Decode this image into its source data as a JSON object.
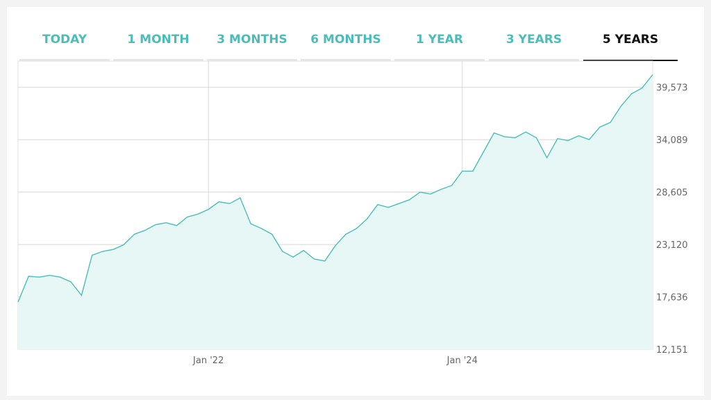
{
  "tabs": [
    {
      "label": "TODAY",
      "active": false
    },
    {
      "label": "1 MONTH",
      "active": false
    },
    {
      "label": "3 MONTHS",
      "active": false
    },
    {
      "label": "6 MONTHS",
      "active": false
    },
    {
      "label": "1 YEAR",
      "active": false
    },
    {
      "label": "3 YEARS",
      "active": false
    },
    {
      "label": "5 YEARS",
      "active": true
    }
  ],
  "colors": {
    "line": "#4bbdb8",
    "fill": "#e6f7f6",
    "grid": "#d8d8d8",
    "tab_accent": "#4bbdb8",
    "active_tab": "#111111"
  },
  "chart_data": {
    "type": "area",
    "title": "",
    "xlabel": "",
    "ylabel": "",
    "grid": true,
    "ylim": [
      12151,
      42315
    ],
    "xlim": [
      "2020-07",
      "2025-07"
    ],
    "yticks": [
      "12,151",
      "17,636",
      "23,120",
      "28,605",
      "34,089",
      "39,573"
    ],
    "xticks": [
      {
        "label": "Jan '22",
        "x": "2022-01"
      },
      {
        "label": "Jan '24",
        "x": "2024-01"
      }
    ],
    "series": [
      {
        "x": [
          "2020-07",
          "2020-08",
          "2020-09",
          "2020-10",
          "2020-11",
          "2020-12",
          "2021-01",
          "2021-02",
          "2021-03",
          "2021-04",
          "2021-05",
          "2021-06",
          "2021-07",
          "2021-08",
          "2021-09",
          "2021-10",
          "2021-11",
          "2021-12",
          "2022-01",
          "2022-02",
          "2022-03",
          "2022-04",
          "2022-05",
          "2022-06",
          "2022-07",
          "2022-08",
          "2022-09",
          "2022-10",
          "2022-11",
          "2022-12",
          "2023-01",
          "2023-02",
          "2023-03",
          "2023-04",
          "2023-05",
          "2023-06",
          "2023-07",
          "2023-08",
          "2023-09",
          "2023-10",
          "2023-11",
          "2023-12",
          "2024-01",
          "2024-02",
          "2024-03",
          "2024-04",
          "2024-05",
          "2024-06",
          "2024-07",
          "2024-08",
          "2024-09",
          "2024-10",
          "2024-11",
          "2024-12",
          "2025-01",
          "2025-02",
          "2025-03",
          "2025-04",
          "2025-05",
          "2025-06",
          "2025-07"
        ],
        "values": [
          17100,
          19800,
          19700,
          19900,
          19700,
          19200,
          17800,
          22000,
          22400,
          22600,
          23100,
          24200,
          24600,
          25200,
          25400,
          25100,
          26000,
          26300,
          26800,
          27600,
          27400,
          28000,
          25300,
          24800,
          24200,
          22400,
          21800,
          22500,
          21600,
          21400,
          23000,
          24200,
          24800,
          25800,
          27300,
          27000,
          27400,
          27800,
          28600,
          28400,
          28900,
          29300,
          30800,
          30800,
          32800,
          34800,
          34400,
          34300,
          34900,
          34300,
          32200,
          34200,
          34000,
          34500,
          34100,
          35400,
          35900,
          37600,
          38900,
          39500,
          40900
        ]
      }
    ]
  }
}
